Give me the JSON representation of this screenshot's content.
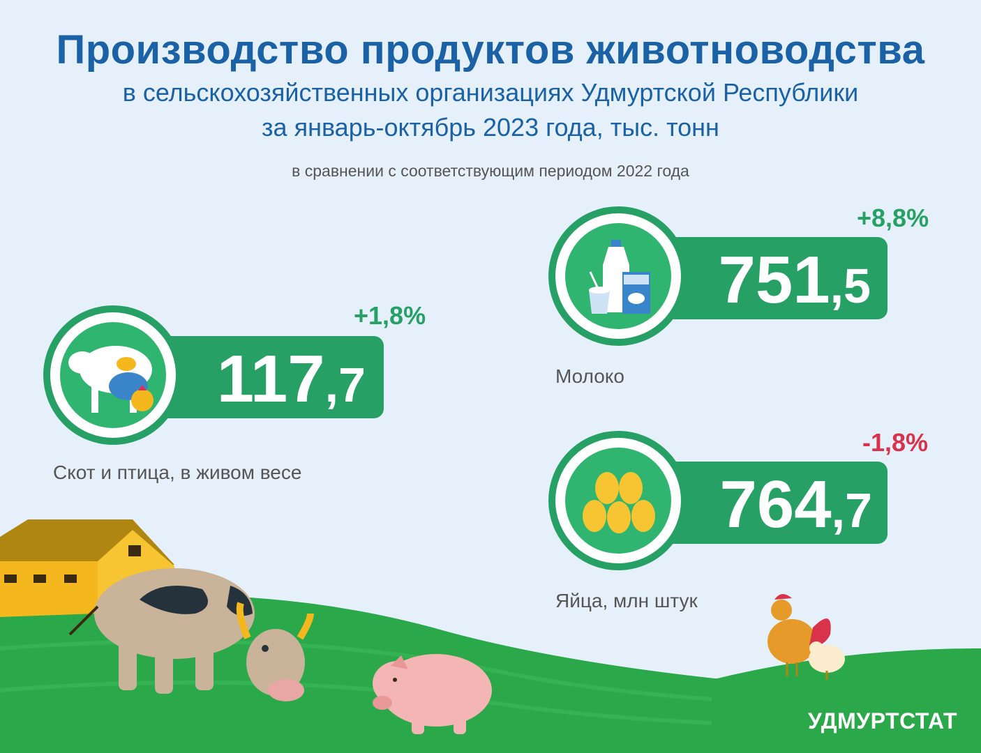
{
  "header": {
    "title": "Производство продуктов животноводства",
    "subtitle_line1": "в сельскохозяйственных организациях Удмуртской Республики",
    "subtitle_line2": "за январь-октябрь 2023 года, тыс. тонн",
    "comparison_note": "в сравнении с соответствующим периодом 2022 года"
  },
  "indicators": [
    {
      "label": "Скот и птица, в живом весе",
      "value_int": "117",
      "value_frac": ",7",
      "change": "+1,8%",
      "change_dir": "up",
      "icon": "cow-pig-chicken-icon"
    },
    {
      "label": "Молоко",
      "value_int": "751",
      "value_frac": ",5",
      "change": "+8,8%",
      "change_dir": "up",
      "icon": "dairy-products-icon"
    },
    {
      "label": "Яйца, млн штук",
      "value_int": "764",
      "value_frac": ",7",
      "change": "-1,8%",
      "change_dir": "down",
      "icon": "eggs-icon"
    }
  ],
  "footer": {
    "brand": "УДМУРТСТАТ"
  },
  "colors": {
    "title": "#1a62a5",
    "accent_green": "#27a065",
    "increase": "#27a065",
    "decrease": "#d8334a",
    "background": "#e6f0fa"
  }
}
